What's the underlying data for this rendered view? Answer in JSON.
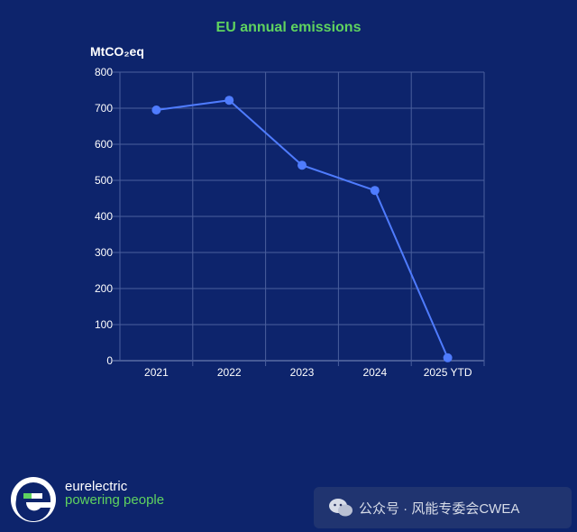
{
  "chart_data": {
    "type": "line",
    "title": "EU annual emissions",
    "ylabel": "MtCO₂eq",
    "xlabel": "",
    "categories": [
      "2021",
      "2022",
      "2023",
      "2024",
      "2025 YTD"
    ],
    "series": [
      {
        "values": [
          695,
          722,
          542,
          472,
          8
        ]
      }
    ],
    "ylim": [
      0,
      800
    ],
    "yticks": [
      0,
      100,
      200,
      300,
      400,
      500,
      600,
      700,
      800
    ],
    "grid": true,
    "colors": {
      "series": "#4f7cff",
      "title": "#5fd35f",
      "background": "#0d246c"
    }
  },
  "logo": {
    "name": "eurelectric",
    "tagline": "powering people",
    "icon": "eurelectric-e-logo"
  },
  "watermark": {
    "icon": "wechat-icon",
    "text": "公众号 · 风能专委会CWEA"
  }
}
